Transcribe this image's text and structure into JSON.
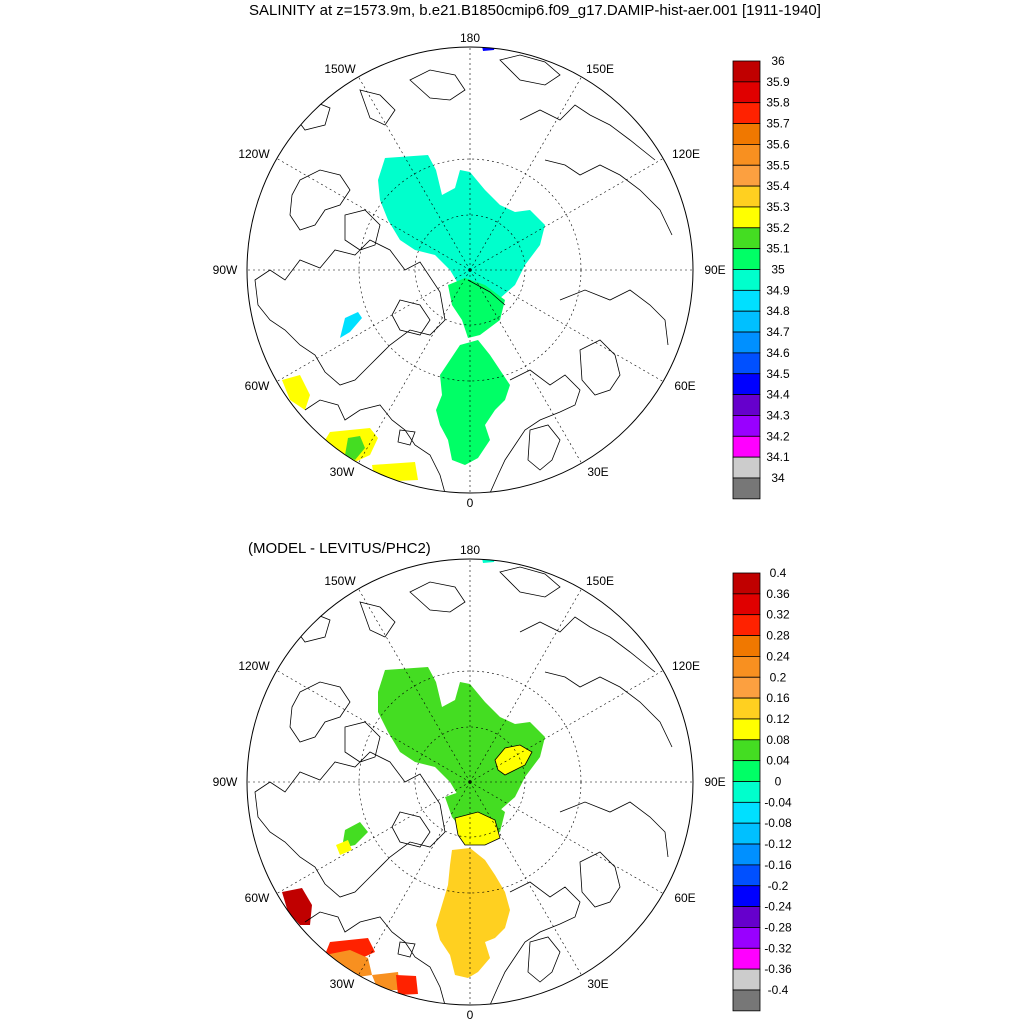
{
  "title": "SALINITY at z=1573.9m, b.e21.B1850cmip6.f09_g17.DAMIP-hist-aer.001 [1911-1940]",
  "subtitle": "(MODEL - LEVITUS/PHC2)",
  "lon_labels": [
    "180",
    "150E",
    "120E",
    "90E",
    "60E",
    "30E",
    "0",
    "30W",
    "60W",
    "90W",
    "120W",
    "150W"
  ],
  "colorbar_top": {
    "levels": [
      "36",
      "35.9",
      "35.8",
      "35.7",
      "35.6",
      "35.5",
      "35.4",
      "35.3",
      "35.2",
      "35.1",
      "35",
      "34.9",
      "34.8",
      "34.7",
      "34.6",
      "34.5",
      "34.4",
      "34.3",
      "34.2",
      "34.1",
      "34"
    ],
    "colors": [
      "#c00000",
      "#e00000",
      "#ff2200",
      "#f07800",
      "#f89020",
      "#fca040",
      "#ffd020",
      "#ffff00",
      "#44dd22",
      "#00ff66",
      "#00ffcc",
      "#00e0ff",
      "#00c0ff",
      "#0090ff",
      "#0050ff",
      "#0000ff",
      "#6600cc",
      "#9900ff",
      "#ff00ff",
      "#cccccc",
      "#777777"
    ]
  },
  "colorbar_bottom": {
    "levels": [
      "0.4",
      "0.36",
      "0.32",
      "0.28",
      "0.24",
      "0.2",
      "0.16",
      "0.12",
      "0.08",
      "0.04",
      "0",
      "-0.04",
      "-0.08",
      "-0.12",
      "-0.16",
      "-0.2",
      "-0.24",
      "-0.28",
      "-0.32",
      "-0.36",
      "-0.4"
    ],
    "colors": [
      "#c00000",
      "#e00000",
      "#ff2200",
      "#f07800",
      "#f89020",
      "#fca040",
      "#ffd020",
      "#ffff00",
      "#44dd22",
      "#00ff66",
      "#00ffcc",
      "#00e0ff",
      "#00c0ff",
      "#0090ff",
      "#0050ff",
      "#0000ff",
      "#6600cc",
      "#9900ff",
      "#ff00ff",
      "#cccccc",
      "#777777"
    ]
  }
}
